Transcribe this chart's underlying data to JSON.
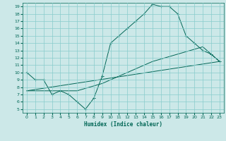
{
  "title": "",
  "xlabel": "Humidex (Indice chaleur)",
  "bg_color": "#cce8e8",
  "grid_color": "#88cccc",
  "line_color": "#006655",
  "xlim": [
    -0.5,
    23.5
  ],
  "ylim": [
    4.5,
    19.5
  ],
  "xticks": [
    0,
    1,
    2,
    3,
    4,
    5,
    6,
    7,
    8,
    9,
    10,
    11,
    12,
    13,
    14,
    15,
    16,
    17,
    18,
    19,
    20,
    21,
    22,
    23
  ],
  "yticks": [
    5,
    6,
    7,
    8,
    9,
    10,
    11,
    12,
    13,
    14,
    15,
    16,
    17,
    18,
    19
  ],
  "line1_x": [
    0,
    1,
    2,
    3,
    4,
    5,
    6,
    7,
    8,
    9,
    10,
    11,
    12,
    13,
    14,
    15,
    16,
    17,
    18,
    19,
    20,
    21,
    22,
    23
  ],
  "line1_y": [
    10,
    9,
    9,
    7,
    7.5,
    7,
    6,
    5,
    6.5,
    9.5,
    14,
    15,
    16,
    17,
    18,
    19.3,
    19,
    19,
    18,
    15,
    14,
    13,
    12.5,
    11.5
  ],
  "line2_x": [
    0,
    3,
    6,
    9,
    12,
    15,
    18,
    21,
    23
  ],
  "line2_y": [
    7.5,
    7.5,
    7.5,
    8.5,
    10,
    11.5,
    12.5,
    13.5,
    11.5
  ],
  "line3_x": [
    0,
    23
  ],
  "line3_y": [
    7.5,
    11.5
  ]
}
